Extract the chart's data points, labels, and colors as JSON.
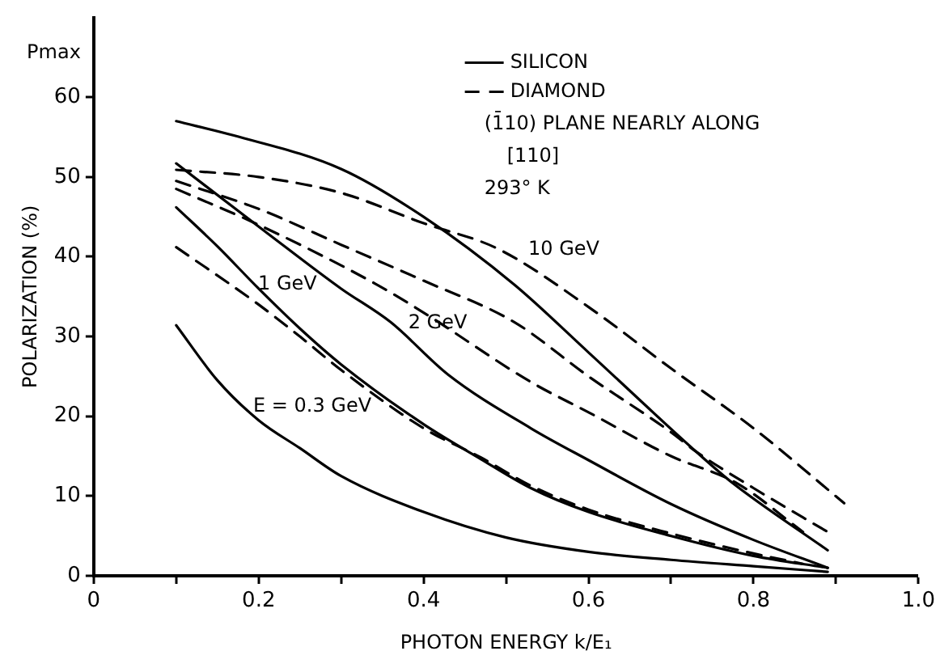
{
  "chart_data": {
    "type": "line",
    "xlabel": "PHOTON ENERGY k/E₁",
    "ylabel": "POLARIZATION (%)",
    "xlim": [
      0,
      1
    ],
    "ylim": [
      0,
      70
    ],
    "xticks": [
      0,
      {
        "value": 0.1,
        "label": null
      },
      0.2,
      {
        "value": 0.3,
        "label": null
      },
      0.4,
      {
        "value": 0.5,
        "label": null
      },
      0.6,
      {
        "value": 0.7,
        "label": null
      },
      0.8,
      {
        "value": 0.9,
        "label": null
      },
      {
        "value": 1,
        "label": "1.0"
      }
    ],
    "yticks": [
      0,
      10,
      20,
      30,
      40,
      50,
      60
    ],
    "grid": false,
    "legend": "top right",
    "marker": "none",
    "series": [
      {
        "name": "SILICON",
        "color": "#000000",
        "line_style": "solid",
        "x": [
          0.1,
          0.17,
          0.3,
          0.4,
          0.51,
          0.6,
          0.73,
          0.775,
          0.89
        ],
        "values": [
          57,
          55.2,
          51,
          45,
          36.5,
          28,
          15.6,
          11.6,
          3.2
        ]
      },
      {
        "name": "DIAMOND",
        "color": "#000000",
        "line_style": "dashed",
        "x": [
          0.1,
          0.2,
          0.3,
          0.4,
          0.49,
          0.6,
          0.7,
          0.8,
          0.91
        ],
        "values": [
          50.9,
          50,
          48,
          44.2,
          41,
          33.7,
          26,
          18.5,
          9.1
        ]
      },
      {
        "color": "#000000",
        "line_style": "solid",
        "x": [
          0.1,
          0.21,
          0.3,
          0.36,
          0.43,
          0.53,
          0.6,
          0.7,
          0.8,
          0.89
        ],
        "values": [
          51.7,
          43,
          36,
          31.8,
          25.2,
          18.5,
          14.5,
          9,
          4.5,
          1
        ]
      },
      {
        "color": "#000000",
        "line_style": "dashed",
        "x": [
          0.1,
          0.2,
          0.3,
          0.4,
          0.51,
          0.6,
          0.7,
          0.73,
          0.8,
          0.89
        ],
        "values": [
          49.5,
          46,
          41.5,
          37,
          31.8,
          25,
          18,
          15.6,
          11,
          5.5
        ]
      },
      {
        "color": "#000000",
        "line_style": "dashed",
        "x": [
          0.1,
          0.2,
          0.34,
          0.4,
          0.53,
          0.6,
          0.7,
          0.78,
          0.86
        ],
        "values": [
          48.5,
          44,
          36.7,
          33,
          24.3,
          20.5,
          15,
          11.6,
          5.5
        ]
      },
      {
        "color": "#000000",
        "line_style": "solid",
        "x": [
          0.1,
          0.15,
          0.2,
          0.25,
          0.3,
          0.4,
          0.47,
          0.53,
          0.6,
          0.7,
          0.8,
          0.89
        ],
        "values": [
          46.2,
          41.3,
          36,
          31,
          26.5,
          19,
          14.6,
          11,
          8,
          5,
          2.5,
          1
        ]
      },
      {
        "color": "#000000",
        "line_style": "dashed",
        "x": [
          0.1,
          0.2,
          0.25,
          0.3,
          0.4,
          0.47,
          0.53,
          0.6,
          0.7,
          0.8,
          0.86
        ],
        "values": [
          41.2,
          34,
          30,
          25.8,
          18.5,
          14.8,
          11.3,
          8.3,
          5.3,
          2.8,
          1.5
        ]
      },
      {
        "color": "#000000",
        "line_style": "solid",
        "x": [
          0.1,
          0.15,
          0.2,
          0.25,
          0.3,
          0.4,
          0.5,
          0.6,
          0.7,
          0.8,
          0.89
        ],
        "values": [
          31.4,
          24.5,
          19.5,
          16,
          12.5,
          8,
          4.8,
          3,
          2,
          1.2,
          0.5
        ]
      }
    ],
    "annotations": [
      "Pmax",
      "(1̄10) PLANE NEARLY ALONG",
      "[110]",
      "293° K",
      "10 GeV",
      "1 GeV",
      "2 GeV",
      "E = 0.3 GeV"
    ]
  }
}
